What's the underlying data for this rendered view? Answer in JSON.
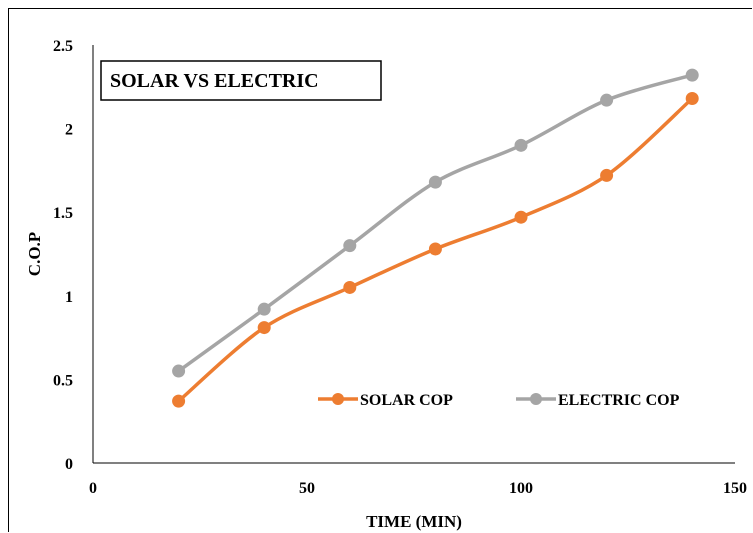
{
  "chart_data": {
    "type": "line",
    "title": "SOLAR VS ELECTRIC",
    "xlabel": "TIME (MIN)",
    "ylabel": "C.O.P",
    "xlim": [
      0,
      150
    ],
    "ylim": [
      0,
      2.5
    ],
    "xticks": [
      0,
      50,
      100,
      150
    ],
    "yticks": [
      0,
      0.5,
      1,
      1.5,
      2,
      2.5
    ],
    "xtick_labels": [
      "0",
      "50",
      "100",
      "150"
    ],
    "ytick_labels": [
      "0",
      "0.5",
      "1",
      "1.5",
      "2",
      "2.5"
    ],
    "grid": false,
    "legend_position": "bottom-right",
    "x": [
      20,
      40,
      60,
      80,
      100,
      120,
      140
    ],
    "series": [
      {
        "name": "SOLAR COP",
        "color": "#ED7D31",
        "values": [
          0.37,
          0.81,
          1.05,
          1.28,
          1.47,
          1.72,
          2.18
        ]
      },
      {
        "name": "ELECTRIC COP",
        "color": "#A5A5A5",
        "values": [
          0.55,
          0.92,
          1.3,
          1.68,
          1.9,
          2.17,
          2.32
        ]
      }
    ]
  }
}
